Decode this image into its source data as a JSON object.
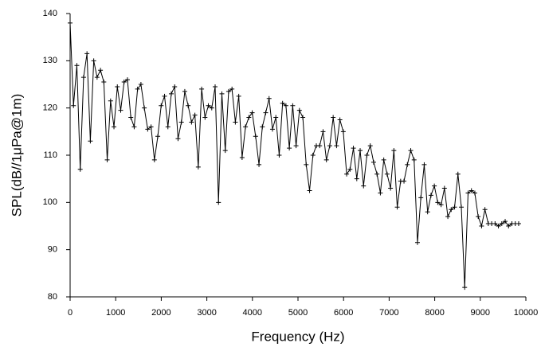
{
  "chart_data": {
    "type": "line",
    "x_label": "Frequency (Hz)",
    "y_label": "SPL(dB//1μPa@1m)",
    "x": [
      0,
      74,
      148,
      222,
      296,
      370,
      444,
      518,
      592,
      666,
      740,
      814,
      888,
      962,
      1036,
      1110,
      1184,
      1258,
      1332,
      1406,
      1480,
      1554,
      1628,
      1702,
      1776,
      1850,
      1924,
      1998,
      2072,
      2146,
      2220,
      2294,
      2368,
      2442,
      2516,
      2590,
      2664,
      2738,
      2812,
      2886,
      2960,
      3034,
      3108,
      3182,
      3256,
      3330,
      3404,
      3478,
      3552,
      3626,
      3700,
      3774,
      3848,
      3922,
      3996,
      4070,
      4144,
      4218,
      4292,
      4366,
      4440,
      4514,
      4588,
      4662,
      4736,
      4810,
      4884,
      4958,
      5032,
      5106,
      5180,
      5254,
      5328,
      5402,
      5476,
      5550,
      5624,
      5698,
      5772,
      5846,
      5920,
      5994,
      6068,
      6142,
      6216,
      6290,
      6364,
      6438,
      6512,
      6586,
      6660,
      6734,
      6808,
      6882,
      6956,
      7030,
      7104,
      7178,
      7252,
      7326,
      7400,
      7474,
      7548,
      7622,
      7696,
      7770,
      7844,
      7918,
      7992,
      8066,
      8140,
      8214,
      8288,
      8362,
      8436,
      8510,
      8584,
      8658,
      8732,
      8806,
      8880,
      8954,
      9028,
      9102,
      9176,
      9250,
      9324,
      9398,
      9472,
      9546,
      9620,
      9694,
      9768,
      9842
    ],
    "values": [
      138,
      120.5,
      129,
      107,
      126.5,
      131.5,
      113,
      130,
      126.5,
      128,
      125.5,
      109,
      121.5,
      116,
      124.5,
      119.5,
      125.5,
      126,
      118,
      116,
      124,
      125,
      120,
      115.5,
      116,
      109,
      114,
      120.5,
      122.5,
      116,
      123,
      124.5,
      113.5,
      117,
      123.5,
      120.5,
      117,
      118.5,
      107.5,
      124,
      118,
      120.5,
      120,
      124.5,
      100,
      123,
      111,
      123.5,
      124,
      117,
      122.5,
      109.5,
      116,
      118,
      119,
      114,
      108,
      116,
      119,
      122,
      115.5,
      118,
      110,
      121,
      120.5,
      111.5,
      120.5,
      112,
      119.5,
      118,
      108,
      102.5,
      110,
      112,
      112,
      115,
      109,
      112,
      118,
      112,
      117.5,
      115,
      106,
      107,
      111.5,
      105,
      111,
      103.5,
      110,
      112,
      108.5,
      106,
      102,
      109,
      106,
      103,
      111,
      99,
      104.5,
      104.5,
      108,
      111,
      109,
      91.5,
      101,
      108,
      98,
      101.5,
      103.5,
      100,
      99.5,
      103,
      97,
      98.5,
      99,
      106,
      99,
      82,
      102,
      102.5,
      102,
      97,
      95,
      98.5,
      95.5,
      95.5,
      95.5,
      95,
      95.5,
      96,
      95,
      95.5,
      95.5,
      95.5
    ],
    "color": "#000000",
    "xlim": [
      0,
      10000
    ],
    "xticks": [
      0,
      1000,
      2000,
      3000,
      4000,
      5000,
      6000,
      7000,
      8000,
      9000,
      10000
    ],
    "ylim": [
      80,
      140
    ],
    "yticks": [
      80,
      90,
      100,
      110,
      120,
      130,
      140
    ]
  }
}
